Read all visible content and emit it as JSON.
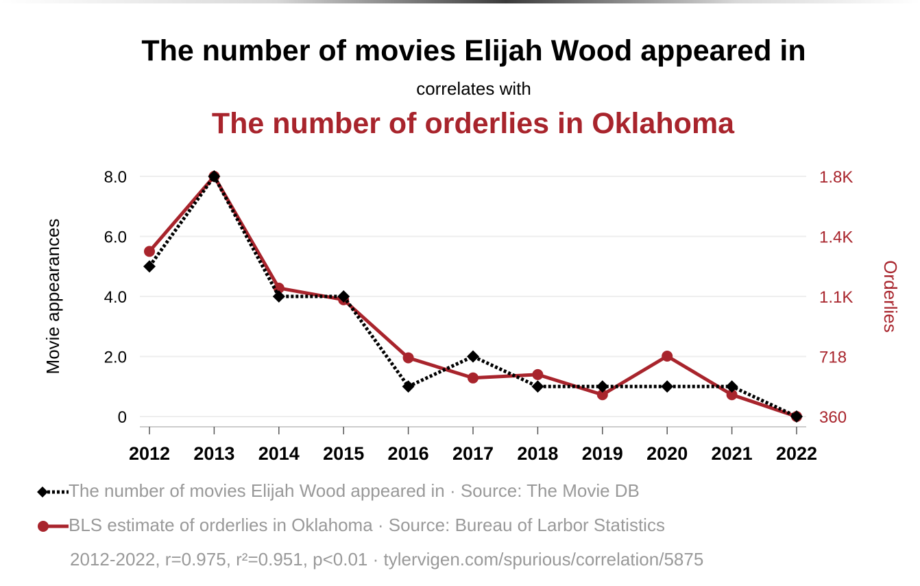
{
  "title": "The number of movies Elijah Wood appeared in",
  "subtitle": "correlates with",
  "title2": "The number of orderlies in Oklahoma",
  "legend": [
    {
      "text": "The number of movies Elijah Wood appeared in · Source: The Movie DB",
      "color": "#000000",
      "marker": "diamond"
    },
    {
      "text": "BLS estimate of orderlies in Oklahoma · Source: Bureau of Larbor Statistics",
      "color": "#a8242c",
      "marker": "circle"
    }
  ],
  "footnote": "2012-2022, r=0.975, r²=0.951, p<0.01 · tylervigen.com/spurious/correlation/5875",
  "chart_data": {
    "type": "line",
    "x": [
      "2012",
      "2013",
      "2014",
      "2015",
      "2016",
      "2017",
      "2018",
      "2019",
      "2020",
      "2021",
      "2022"
    ],
    "ylabel": "Movie appearances",
    "y2label": "Orderlies",
    "ylim": [
      0,
      8
    ],
    "y2lim": [
      360,
      1800
    ],
    "yticks": [
      "8.0",
      "6.0",
      "4.0",
      "2.0",
      "0"
    ],
    "y2ticks": [
      "1.8K",
      "1.4K",
      "1.1K",
      "718",
      "360"
    ],
    "y2tick_values": [
      1800,
      1440,
      1080,
      718,
      360
    ],
    "grid": true,
    "series": [
      {
        "name": "The number of movies Elijah Wood appeared in",
        "axis": "left",
        "color": "#000000",
        "style": "dotted",
        "marker": "diamond",
        "values": [
          5,
          8,
          4,
          4,
          1,
          2,
          1,
          1,
          1,
          1,
          0
        ]
      },
      {
        "name": "BLS estimate of orderlies in Oklahoma",
        "axis": "right",
        "color": "#a8242c",
        "style": "solid",
        "marker": "circle",
        "values": [
          1350,
          1800,
          1130,
          1060,
          710,
          590,
          610,
          490,
          720,
          490,
          360
        ]
      }
    ]
  }
}
